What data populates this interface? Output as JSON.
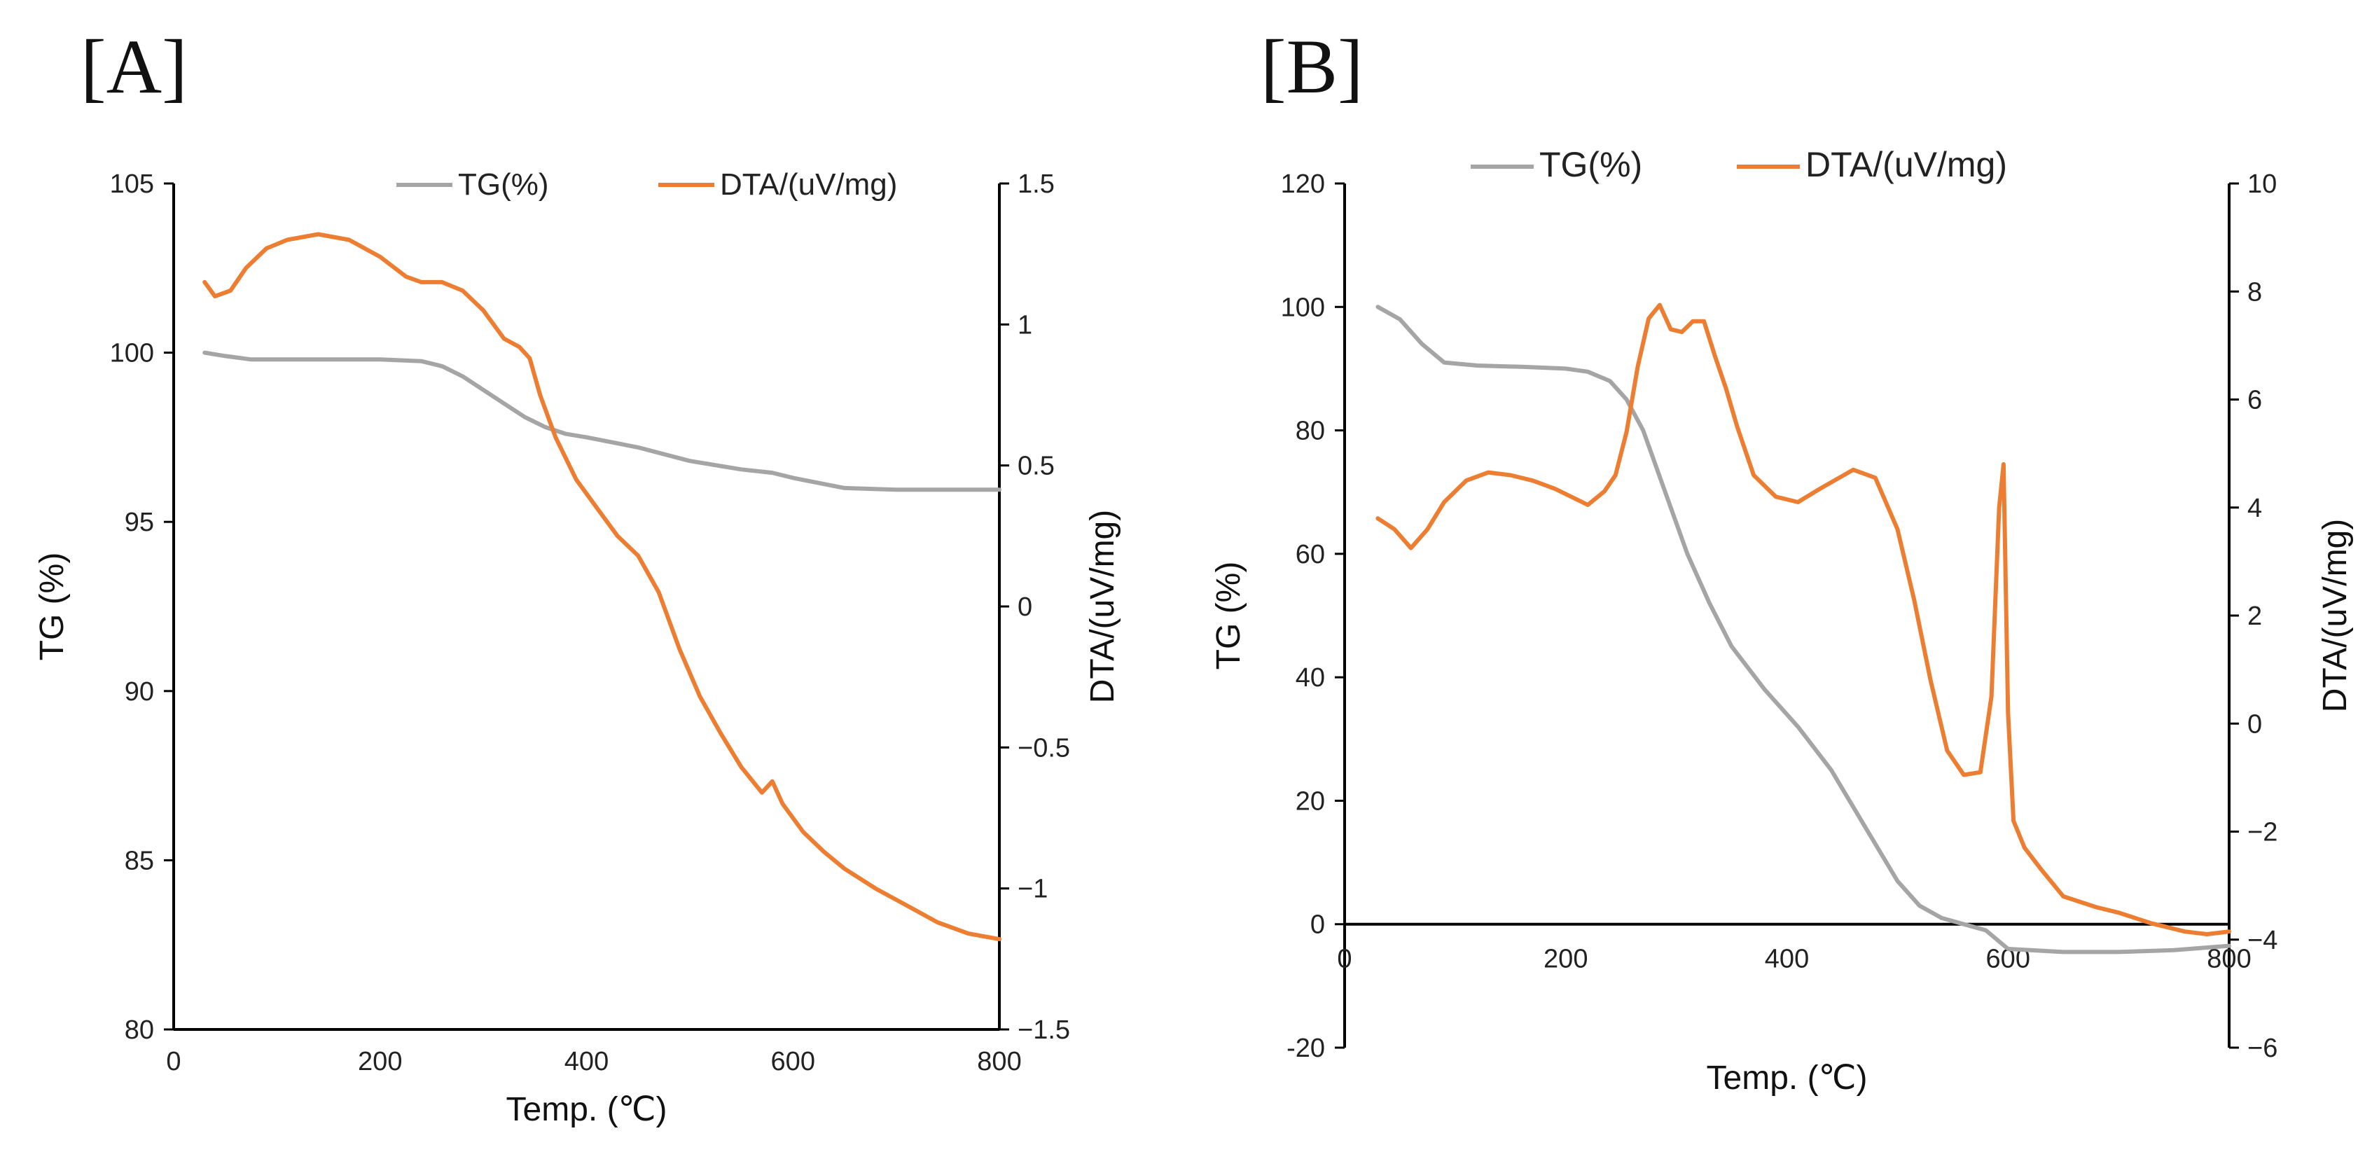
{
  "colors": {
    "tg": "#A5A5A5",
    "dta": "#ED7D31",
    "axis": "#000000"
  },
  "chart_data": [
    {
      "panel_label": "[A]",
      "type": "line",
      "xlabel": "Temp. (℃)",
      "ylabel": "TG (%)",
      "y2label": "DTA/(uV/mg)",
      "xlim": [
        0,
        800
      ],
      "ylim": [
        80,
        105
      ],
      "y2lim": [
        -1.5,
        1.5
      ],
      "x_ticks": [
        "0",
        "200",
        "400",
        "600",
        "800"
      ],
      "y_ticks": [
        "80",
        "85",
        "90",
        "95",
        "100",
        "105"
      ],
      "y2_ticks": [
        "−1.5",
        "−1",
        "−0.5",
        "0",
        "0.5",
        "1",
        "1.5"
      ],
      "legend": [
        "TG(%)",
        "DTA/(uV/mg)"
      ],
      "series": [
        {
          "name": "TG(%)",
          "axis": "left",
          "x": [
            30,
            50,
            75,
            100,
            150,
            200,
            240,
            260,
            280,
            300,
            320,
            340,
            360,
            380,
            400,
            450,
            500,
            550,
            580,
            600,
            650,
            700,
            750,
            800
          ],
          "y": [
            100.0,
            99.9,
            99.8,
            99.8,
            99.8,
            99.8,
            99.75,
            99.6,
            99.3,
            98.9,
            98.5,
            98.1,
            97.8,
            97.6,
            97.5,
            97.2,
            96.8,
            96.55,
            96.45,
            96.3,
            96.0,
            95.95,
            95.95,
            95.95
          ]
        },
        {
          "name": "DTA/(uV/mg)",
          "axis": "right",
          "x": [
            30,
            40,
            55,
            70,
            90,
            110,
            140,
            170,
            200,
            225,
            240,
            260,
            280,
            300,
            320,
            335,
            345,
            355,
            370,
            390,
            410,
            430,
            450,
            470,
            490,
            510,
            530,
            550,
            570,
            580,
            590,
            610,
            630,
            650,
            680,
            710,
            740,
            770,
            800
          ],
          "y": [
            1.15,
            1.1,
            1.12,
            1.2,
            1.27,
            1.3,
            1.32,
            1.3,
            1.24,
            1.17,
            1.15,
            1.15,
            1.12,
            1.05,
            0.95,
            0.92,
            0.88,
            0.75,
            0.6,
            0.45,
            0.35,
            0.25,
            0.18,
            0.05,
            -0.15,
            -0.32,
            -0.45,
            -0.57,
            -0.66,
            -0.62,
            -0.7,
            -0.8,
            -0.87,
            -0.93,
            -1.0,
            -1.06,
            -1.12,
            -1.16,
            -1.18
          ]
        }
      ]
    },
    {
      "panel_label": "[B]",
      "type": "line",
      "xlabel": "Temp. (℃)",
      "ylabel": "TG (%)",
      "y2label": "DTA/(uV/mg)",
      "xlim": [
        0,
        800
      ],
      "ylim": [
        -20,
        120
      ],
      "y2lim": [
        -6,
        10
      ],
      "x_ticks": [
        "0",
        "200",
        "400",
        "600",
        "800"
      ],
      "y_ticks": [
        "-20",
        "0",
        "20",
        "40",
        "60",
        "80",
        "100",
        "120"
      ],
      "y2_ticks": [
        "−6",
        "−4",
        "−2",
        "0",
        "2",
        "4",
        "6",
        "8",
        "10"
      ],
      "legend": [
        "TG(%)",
        "DTA/(uV/mg)"
      ],
      "series": [
        {
          "name": "TG(%)",
          "axis": "left",
          "x": [
            30,
            50,
            70,
            90,
            120,
            160,
            200,
            220,
            240,
            255,
            270,
            290,
            310,
            330,
            350,
            380,
            410,
            440,
            470,
            500,
            520,
            540,
            560,
            580,
            600,
            650,
            700,
            750,
            800
          ],
          "y": [
            100.0,
            98,
            94,
            91,
            90.5,
            90.3,
            90,
            89.5,
            88,
            85,
            80,
            70,
            60,
            52,
            45,
            38,
            32,
            25,
            16,
            7,
            3,
            1,
            0,
            -1,
            -4,
            -4.5,
            -4.5,
            -4.2,
            -3.5
          ]
        },
        {
          "name": "DTA/(uV/mg)",
          "axis": "right",
          "x": [
            30,
            45,
            60,
            75,
            90,
            110,
            130,
            150,
            170,
            190,
            205,
            220,
            235,
            245,
            255,
            265,
            275,
            285,
            295,
            305,
            315,
            325,
            335,
            345,
            355,
            370,
            390,
            410,
            430,
            460,
            480,
            500,
            515,
            530,
            545,
            560,
            575,
            585,
            592,
            596,
            600,
            605,
            615,
            630,
            650,
            680,
            700,
            730,
            760,
            780,
            800
          ],
          "y": [
            3.8,
            3.6,
            3.25,
            3.6,
            4.1,
            4.5,
            4.65,
            4.6,
            4.5,
            4.35,
            4.2,
            4.05,
            4.3,
            4.6,
            5.4,
            6.6,
            7.5,
            7.75,
            7.3,
            7.25,
            7.45,
            7.45,
            6.8,
            6.2,
            5.5,
            4.6,
            4.2,
            4.1,
            4.35,
            4.7,
            4.55,
            3.6,
            2.3,
            0.8,
            -0.5,
            -0.95,
            -0.9,
            0.5,
            4.0,
            4.8,
            0.2,
            -1.8,
            -2.3,
            -2.7,
            -3.2,
            -3.4,
            -3.5,
            -3.7,
            -3.85,
            -3.9,
            -3.85
          ]
        }
      ]
    }
  ]
}
